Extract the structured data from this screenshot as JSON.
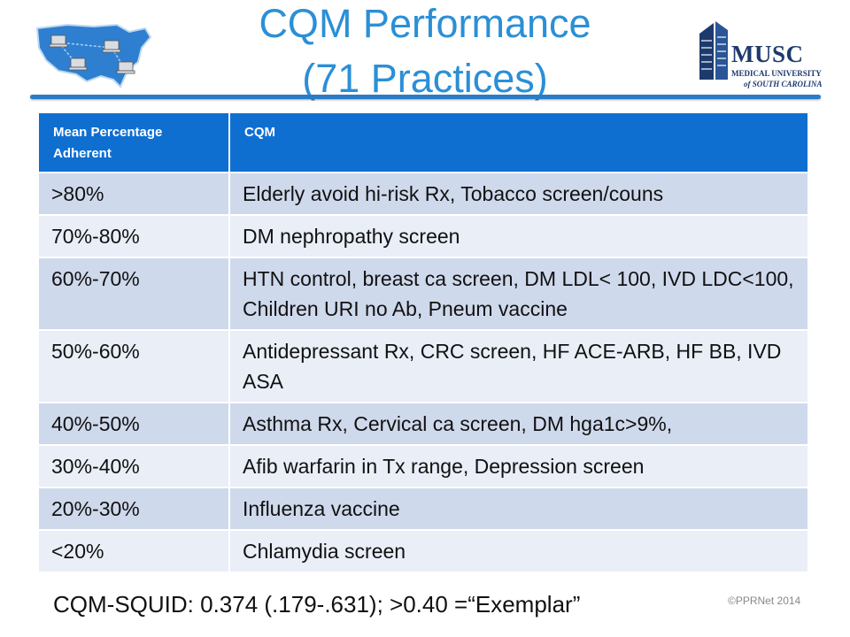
{
  "header": {
    "title_line1": "CQM Performance",
    "title_line2": "(71 Practices)"
  },
  "logo": {
    "name": "MUSC",
    "line1": "MEDICAL UNIVERSITY",
    "line2": "of SOUTH CAROLINA"
  },
  "table": {
    "col1_header": "Mean Percentage Adherent",
    "col2_header": "CQM",
    "rows": [
      {
        "range": ">80%",
        "measures": "Elderly avoid hi-risk Rx, Tobacco screen/couns"
      },
      {
        "range": "70%-80%",
        "measures": "DM nephropathy screen"
      },
      {
        "range": "60%-70%",
        "measures": "HTN control, breast ca screen, DM LDL< 100, IVD LDC<100, Children URI no Ab, Pneum vaccine"
      },
      {
        "range": "50%-60%",
        "measures": "Antidepressant Rx, CRC screen, HF ACE-ARB, HF BB, IVD ASA"
      },
      {
        "range": "40%-50%",
        "measures": "Asthma Rx, Cervical ca screen, DM hga1c>9%,"
      },
      {
        "range": "30%-40%",
        "measures": "Afib warfarin in Tx range, Depression screen"
      },
      {
        "range": "20%-30%",
        "measures": "Influenza vaccine"
      },
      {
        "range": "<20%",
        "measures": "Chlamydia screen"
      }
    ]
  },
  "footer": {
    "squid": "CQM-SQUID: 0.374 (.179-.631); >0.40 =“Exemplar”",
    "copyright": "©PPRNet 2014"
  },
  "colors": {
    "title": "#2b8fd6",
    "header_bg": "#0e6fd1",
    "row_dark": "#cfd9ec",
    "row_light": "#e9eef7",
    "logo": "#1d3a6e"
  }
}
